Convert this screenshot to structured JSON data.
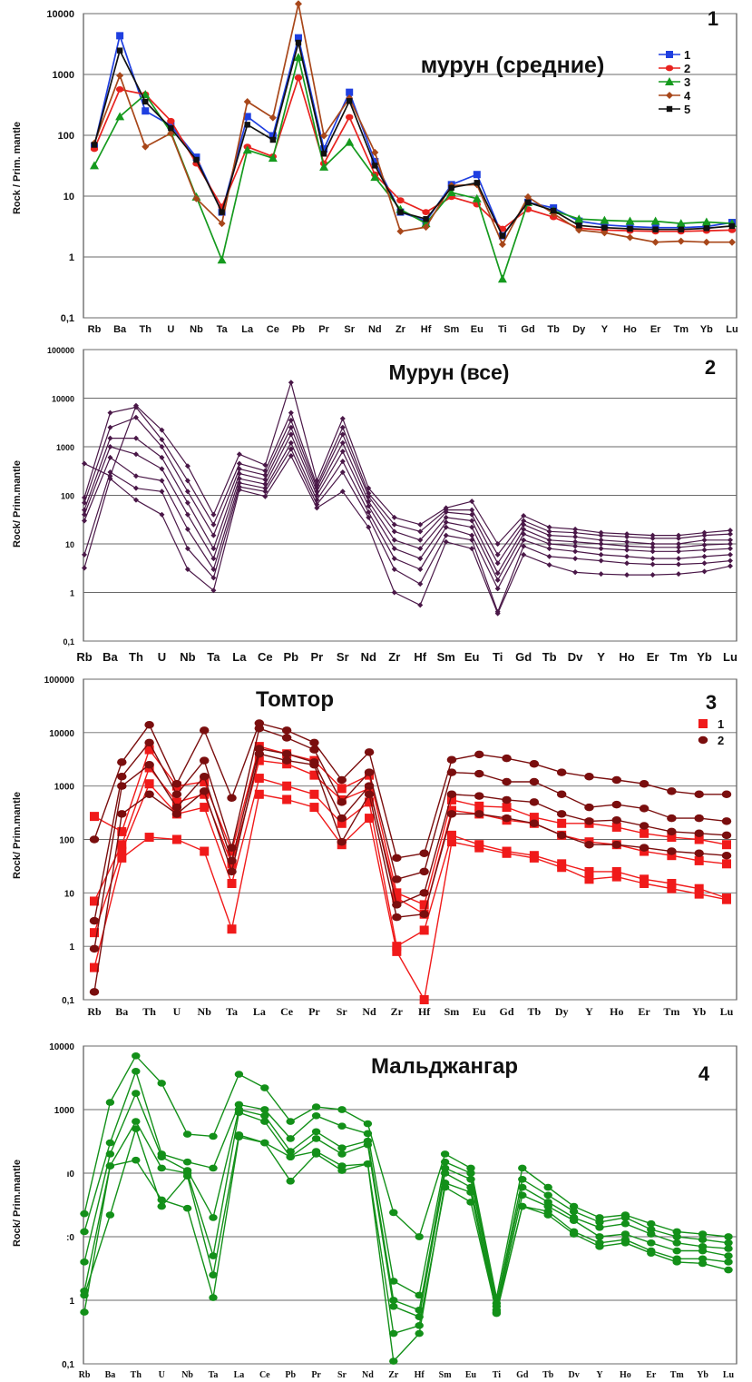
{
  "chart_data": [
    {
      "type": "line",
      "title": "мурун  (средние)",
      "panel_number": "1",
      "ylabel": "Rock / Prim. mantle",
      "yscale": "log",
      "ylim": [
        0.1,
        30000
      ],
      "yticks": [
        "0,1",
        "1",
        "10",
        "100",
        "1000",
        "10000"
      ],
      "categories": [
        "Rb",
        "Ba",
        "Th",
        "U",
        "Nb",
        "Ta",
        "La",
        "Ce",
        "Pb",
        "Pr",
        "Sr",
        "Nd",
        "Zr",
        "Hf",
        "Sm",
        "Eu",
        "Ti",
        "Gd",
        "Tb",
        "Dy",
        "Y",
        "Ho",
        "Er",
        "Tm",
        "Yb",
        "Lu"
      ],
      "legend_position": "top-right",
      "series": [
        {
          "name": "1",
          "color": "#1f3fe0",
          "marker": "square",
          "values": [
            125,
            12000,
            530,
            290,
            78,
            8,
            420,
            190,
            11000,
            110,
            1150,
            65,
            8,
            5.5,
            25,
            38,
            3,
            12,
            9.5,
            5.5,
            4.7,
            4.4,
            4.2,
            4.2,
            4.4,
            5.2
          ]
        },
        {
          "name": "2",
          "color": "#e8231f",
          "marker": "circle",
          "values": [
            110,
            1300,
            1050,
            350,
            60,
            10,
            120,
            80,
            2100,
            60,
            410,
            38,
            13,
            8,
            15,
            11,
            4,
            9,
            6.5,
            4.1,
            3.8,
            3.7,
            3.6,
            3.6,
            3.7,
            3.8
          ]
        },
        {
          "name": "3",
          "color": "#159a1e",
          "marker": "triangle",
          "values": [
            55,
            420,
            1050,
            220,
            15,
            1.1,
            105,
            75,
            4900,
            52,
            145,
            34,
            9,
            5,
            18,
            14,
            0.5,
            12,
            8.5,
            6,
            5.7,
            5.5,
            5.5,
            5,
            5.3,
            5
          ]
        },
        {
          "name": "4",
          "color": "#a8471a",
          "marker": "diamond",
          "values": [
            140,
            2300,
            120,
            210,
            14,
            5,
            780,
            400,
            45000,
            190,
            900,
            95,
            3.6,
            4.3,
            24,
            25,
            2.1,
            15,
            7.5,
            3.8,
            3.4,
            2.8,
            2.3,
            2.4,
            2.3,
            2.3
          ]
        },
        {
          "name": "5",
          "color": "#111111",
          "marker": "square-small",
          "values": [
            130,
            6500,
            780,
            260,
            70,
            8,
            300,
            160,
            9000,
            90,
            800,
            55,
            8,
            6,
            22,
            27,
            3,
            12,
            8.5,
            4.6,
            4.2,
            4,
            3.9,
            3.9,
            4.1,
            4.5
          ]
        }
      ]
    },
    {
      "type": "line",
      "title": "Мурун  (все)",
      "panel_number": "2",
      "ylabel": "Rock/ Prim.mantle",
      "yscale": "log",
      "ylim": [
        0.1,
        100000
      ],
      "yticks": [
        "0,1",
        "1",
        "10",
        "100",
        "1000",
        "10000",
        "100000"
      ],
      "categories": [
        "Rb",
        "Ba",
        "Th",
        "U",
        "Nb",
        "Ta",
        "La",
        "Ce",
        "Pb",
        "Pr",
        "Sr",
        "Nd",
        "Zr",
        "Hf",
        "Sm",
        "Eu",
        "Ti",
        "Gd",
        "Tb",
        "Dv",
        "Y",
        "Ho",
        "Er",
        "Tm",
        "Yb",
        "Lu"
      ],
      "series": [
        {
          "color": "#4a1848",
          "marker": "diamond",
          "values": [
            450,
            250,
            7000,
            2200,
            400,
            40,
            700,
            420,
            21000,
            200,
            3800,
            140,
            35,
            25,
            55,
            75,
            10,
            38,
            22,
            20,
            17,
            16,
            15,
            15,
            17,
            19
          ]
        },
        {
          "color": "#4a1848",
          "marker": "diamond",
          "values": [
            90,
            5000,
            6500,
            1400,
            200,
            25,
            450,
            320,
            5000,
            160,
            2500,
            110,
            25,
            18,
            50,
            50,
            6,
            30,
            18,
            17,
            15,
            14,
            13,
            13,
            15,
            16
          ]
        },
        {
          "color": "#4a1848",
          "marker": "diamond",
          "values": [
            70,
            2500,
            4000,
            1000,
            120,
            15,
            350,
            260,
            3500,
            140,
            1800,
            95,
            18,
            12,
            45,
            40,
            4,
            25,
            15,
            14,
            12,
            11,
            10,
            10,
            12,
            12
          ]
        },
        {
          "color": "#4a1848",
          "marker": "diamond",
          "values": [
            50,
            1500,
            1500,
            600,
            70,
            8,
            280,
            210,
            2500,
            120,
            1200,
            75,
            12,
            8,
            35,
            30,
            2.5,
            20,
            12,
            11,
            10,
            9,
            8.5,
            8.5,
            9.5,
            10
          ]
        },
        {
          "color": "#4a1848",
          "marker": "diamond",
          "values": [
            40,
            1000,
            700,
            350,
            40,
            5,
            220,
            170,
            1800,
            100,
            800,
            60,
            8,
            5,
            28,
            22,
            1.8,
            16,
            10,
            9,
            8,
            7.5,
            7,
            7,
            7.5,
            8
          ]
        },
        {
          "color": "#4a1848",
          "marker": "diamond",
          "values": [
            30,
            600,
            250,
            200,
            20,
            3,
            180,
            140,
            1200,
            80,
            500,
            45,
            5,
            3,
            22,
            15,
            1.2,
            12,
            8,
            7,
            6,
            5.5,
            5,
            5,
            5.5,
            6
          ]
        },
        {
          "color": "#4a1848",
          "marker": "diamond",
          "values": [
            6,
            300,
            140,
            120,
            8,
            2,
            150,
            120,
            900,
            65,
            300,
            35,
            3,
            1.5,
            15,
            12,
            0.4,
            9,
            5.5,
            5,
            4.5,
            4,
            3.8,
            3.8,
            4,
            4.5
          ]
        },
        {
          "color": "#4a1848",
          "marker": "diamond",
          "values": [
            3.2,
            220,
            80,
            40,
            3,
            1.1,
            130,
            95,
            650,
            55,
            120,
            22,
            1,
            0.55,
            11,
            8,
            0.37,
            6,
            3.7,
            2.6,
            2.4,
            2.3,
            2.3,
            2.4,
            2.7,
            3.5
          ]
        }
      ]
    },
    {
      "type": "line",
      "title": "Томтор",
      "panel_number": "3",
      "ylabel": "Rock/ Prim.mantle",
      "yscale": "log",
      "ylim": [
        0.1,
        100000
      ],
      "yticks": [
        "0,1",
        "1",
        "10",
        "100",
        "1000",
        "10000",
        "100000"
      ],
      "categories": [
        "Rb",
        "Ba",
        "Th",
        "U",
        "Nb",
        "Ta",
        "La",
        "Ce",
        "Pr",
        "Sr",
        "Nd",
        "Zr",
        "Hf",
        "Sm",
        "Eu",
        "Gd",
        "Tb",
        "Dy",
        "Y",
        "Ho",
        "Er",
        "Tm",
        "Yb",
        "Lu"
      ],
      "legend_position": "top-right",
      "series": [
        {
          "name": "1",
          "color": "#f01a1a",
          "marker": "square",
          "values": [
            270,
            140,
            4800,
            1000,
            1200,
            60,
            5500,
            4000,
            3000,
            900,
            1600,
            10,
            6,
            550,
            420,
            400,
            260,
            200,
            200,
            170,
            130,
            110,
            100,
            80
          ]
        },
        {
          "name": "1",
          "color": "#f01a1a",
          "marker": "square",
          "values": [
            7,
            80,
            2200,
            500,
            700,
            35,
            3000,
            2600,
            1600,
            550,
            900,
            8,
            4,
            350,
            300,
            230,
            200,
            120,
            90,
            80,
            60,
            50,
            40,
            35
          ]
        },
        {
          "name": "1",
          "color": "#f01a1a",
          "marker": "square",
          "values": [
            1.8,
            60,
            1100,
            300,
            400,
            15,
            1400,
            1000,
            700,
            200,
            500,
            1,
            2,
            120,
            80,
            60,
            50,
            35,
            25,
            25,
            18,
            15,
            12,
            8
          ]
        },
        {
          "name": "1",
          "color": "#f01a1a",
          "marker": "square",
          "values": [
            0.4,
            45,
            110,
            100,
            60,
            2.1,
            700,
            560,
            400,
            80,
            250,
            0.8,
            0.1,
            90,
            70,
            55,
            45,
            30,
            18,
            20,
            15,
            12,
            9.5,
            7.5
          ]
        },
        {
          "name": "2",
          "color": "#7a0e0e",
          "marker": "circle",
          "values": [
            100,
            2800,
            14000,
            1100,
            11000,
            600,
            15000,
            11000,
            6500,
            1300,
            4300,
            45,
            55,
            3100,
            3900,
            3300,
            2600,
            1800,
            1500,
            1300,
            1100,
            800,
            700,
            700
          ]
        },
        {
          "name": "2",
          "color": "#7a0e0e",
          "marker": "circle",
          "values": [
            3,
            1500,
            6500,
            700,
            3000,
            70,
            12000,
            8000,
            4800,
            500,
            1800,
            18,
            25,
            1800,
            1700,
            1200,
            1200,
            700,
            400,
            450,
            380,
            250,
            250,
            220
          ]
        },
        {
          "name": "2",
          "color": "#7a0e0e",
          "marker": "circle",
          "values": [
            0.9,
            1000,
            2500,
            400,
            1500,
            40,
            5000,
            4000,
            2800,
            250,
            1000,
            6,
            10,
            700,
            650,
            550,
            500,
            300,
            220,
            230,
            180,
            140,
            130,
            120
          ]
        },
        {
          "name": "2",
          "color": "#7a0e0e",
          "marker": "circle",
          "values": [
            0.14,
            300,
            700,
            300,
            800,
            25,
            4000,
            3000,
            2500,
            90,
            700,
            3.5,
            4,
            300,
            300,
            250,
            200,
            120,
            80,
            80,
            70,
            60,
            55,
            50
          ]
        }
      ]
    },
    {
      "type": "line",
      "title": "Мальджангар",
      "panel_number": "4",
      "ylabel": "Rock/ Prim.mantle",
      "yscale": "log",
      "ylim": [
        0.1,
        10000
      ],
      "yticks": [
        "0,1",
        "1",
        ":0",
        "ı0",
        "1000",
        "10000"
      ],
      "categories": [
        "Rb",
        "Ba",
        "Th",
        "U",
        "Nb",
        "Ta",
        "La",
        "Ce",
        "Pb",
        "Pr",
        "Sr",
        "Nd",
        "Zr",
        "Hf",
        "Sm",
        "Eu",
        "Ti",
        "Gd",
        "Tb",
        "Dv",
        "Y",
        "Ho",
        "Er",
        "Tm",
        "Yb",
        "Lu"
      ],
      "series": [
        {
          "color": "#139019",
          "marker": "circle",
          "values": [
            23,
            1300,
            7000,
            2600,
            410,
            380,
            3600,
            2200,
            650,
            1100,
            1000,
            600,
            24,
            10,
            200,
            120,
            1.1,
            120,
            60,
            30,
            20,
            22,
            16,
            12,
            11,
            10
          ]
        },
        {
          "color": "#139019",
          "marker": "circle",
          "values": [
            12,
            300,
            4000,
            200,
            150,
            120,
            1200,
            1000,
            350,
            800,
            550,
            420,
            2,
            1.2,
            150,
            100,
            0.9,
            80,
            45,
            25,
            17,
            20,
            13,
            10,
            9,
            8
          ]
        },
        {
          "color": "#139019",
          "marker": "circle",
          "values": [
            4,
            200,
            1800,
            180,
            110,
            20,
            1000,
            800,
            220,
            450,
            250,
            320,
            1,
            0.7,
            120,
            80,
            0.8,
            60,
            35,
            20,
            14,
            16,
            11,
            8,
            7,
            6.5
          ]
        },
        {
          "color": "#139019",
          "marker": "circle",
          "values": [
            1.4,
            130,
            650,
            120,
            100,
            5,
            900,
            650,
            180,
            350,
            200,
            280,
            0.8,
            0.55,
            100,
            60,
            0.7,
            45,
            30,
            18,
            10,
            11,
            8,
            6,
            6,
            5
          ]
        },
        {
          "color": "#139019",
          "marker": "circle",
          "values": [
            1.2,
            22,
            500,
            30,
            90,
            2.5,
            400,
            300,
            75,
            200,
            110,
            140,
            0.3,
            0.4,
            60,
            35,
            0.65,
            30,
            25,
            12,
            8,
            9,
            6,
            4.5,
            4.5,
            4
          ]
        },
        {
          "color": "#139019",
          "marker": "circle",
          "values": [
            0.65,
            130,
            160,
            38,
            28,
            1.1,
            370,
            300,
            180,
            220,
            130,
            140,
            0.11,
            0.3,
            70,
            50,
            0.62,
            30,
            22,
            11,
            7,
            8,
            5.5,
            4,
            3.8,
            3
          ]
        }
      ]
    }
  ]
}
